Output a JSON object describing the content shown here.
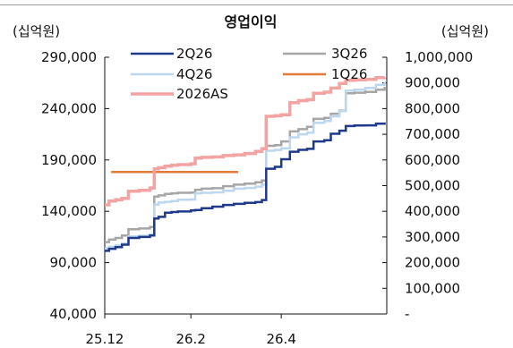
{
  "chart_data": {
    "type": "line",
    "title": "영업이익",
    "left_unit": "(십억원)",
    "right_unit": "(십억원)",
    "x_ticks": [
      "25.12",
      "26.2",
      "26.4"
    ],
    "left_axis": {
      "min": 40000,
      "max": 290000,
      "ticks": [
        40000,
        90000,
        140000,
        190000,
        240000,
        290000
      ],
      "tick_labels": [
        "40,000",
        "90,000",
        "140,000",
        "190,000",
        "240,000",
        "290,000"
      ]
    },
    "right_axis": {
      "min": 0,
      "max": 1000000,
      "ticks": [
        0,
        100000,
        200000,
        300000,
        400000,
        500000,
        600000,
        700000,
        800000,
        900000,
        1000000
      ],
      "tick_labels": [
        "-",
        "100,000",
        "200,000",
        "300,000",
        "400,000",
        "500,000",
        "600,000",
        "700,000",
        "800,000",
        "900,000",
        "1,000,000"
      ]
    },
    "x_range": [
      0,
      131
    ],
    "x_tick_positions": [
      0,
      40,
      82
    ],
    "grid": false,
    "legend_position": "top",
    "series": [
      {
        "name": "2Q26",
        "axis": "left",
        "color": "#1f3a8a",
        "width": 2.5,
        "points": [
          [
            0,
            101500
          ],
          [
            2,
            103500
          ],
          [
            5,
            105200
          ],
          [
            8,
            107500
          ],
          [
            11,
            114000
          ],
          [
            16,
            115000
          ],
          [
            21,
            116500
          ],
          [
            23,
            133000
          ],
          [
            25,
            134600
          ],
          [
            28,
            138600
          ],
          [
            31,
            139300
          ],
          [
            34,
            139800
          ],
          [
            40,
            140800
          ],
          [
            42,
            141200
          ],
          [
            45,
            143000
          ],
          [
            50,
            144500
          ],
          [
            55,
            146200
          ],
          [
            60,
            147200
          ],
          [
            65,
            148200
          ],
          [
            70,
            149000
          ],
          [
            73,
            151000
          ],
          [
            75,
            181500
          ],
          [
            79,
            183300
          ],
          [
            82,
            190700
          ],
          [
            86,
            198000
          ],
          [
            90,
            199800
          ],
          [
            94,
            200800
          ],
          [
            97,
            208000
          ],
          [
            102,
            209200
          ],
          [
            105,
            215500
          ],
          [
            109,
            218500
          ],
          [
            112,
            223000
          ],
          [
            116,
            223600
          ],
          [
            121,
            223700
          ],
          [
            126,
            225300
          ],
          [
            130,
            226500
          ]
        ]
      },
      {
        "name": "3Q26",
        "axis": "right",
        "color": "#a6a6a6",
        "width": 2.5,
        "points": [
          [
            0,
            280000
          ],
          [
            2,
            290000
          ],
          [
            5,
            296000
          ],
          [
            8,
            306000
          ],
          [
            11,
            330000
          ],
          [
            16,
            333000
          ],
          [
            21,
            339000
          ],
          [
            23,
            457000
          ],
          [
            25,
            462000
          ],
          [
            28,
            468000
          ],
          [
            31,
            470000
          ],
          [
            34,
            472000
          ],
          [
            40,
            473000
          ],
          [
            42,
            484000
          ],
          [
            45,
            488000
          ],
          [
            50,
            490000
          ],
          [
            55,
            498000
          ],
          [
            60,
            504000
          ],
          [
            65,
            508000
          ],
          [
            70,
            513000
          ],
          [
            73,
            520000
          ],
          [
            75,
            655000
          ],
          [
            79,
            658000
          ],
          [
            82,
            672000
          ],
          [
            86,
            711000
          ],
          [
            90,
            720000
          ],
          [
            94,
            729000
          ],
          [
            97,
            760000
          ],
          [
            102,
            764000
          ],
          [
            105,
            780000
          ],
          [
            109,
            792000
          ],
          [
            112,
            860000
          ],
          [
            116,
            862000
          ],
          [
            121,
            865000
          ],
          [
            126,
            874000
          ],
          [
            130,
            885000
          ]
        ]
      },
      {
        "name": "4Q26",
        "axis": "right",
        "color": "#bdd7ee",
        "width": 2.5,
        "points": [
          [
            0,
            255000
          ],
          [
            2,
            262000
          ],
          [
            5,
            268000
          ],
          [
            8,
            275000
          ],
          [
            11,
            302000
          ],
          [
            16,
            305000
          ],
          [
            21,
            310000
          ],
          [
            23,
            426000
          ],
          [
            25,
            434000
          ],
          [
            28,
            437000
          ],
          [
            31,
            440000
          ],
          [
            34,
            445000
          ],
          [
            40,
            446000
          ],
          [
            42,
            470000
          ],
          [
            45,
            472000
          ],
          [
            50,
            474000
          ],
          [
            55,
            480000
          ],
          [
            60,
            488000
          ],
          [
            65,
            491000
          ],
          [
            70,
            496000
          ],
          [
            73,
            504000
          ],
          [
            75,
            636000
          ],
          [
            79,
            639000
          ],
          [
            82,
            645000
          ],
          [
            86,
            688000
          ],
          [
            90,
            700000
          ],
          [
            94,
            706000
          ],
          [
            97,
            745000
          ],
          [
            102,
            752000
          ],
          [
            105,
            770000
          ],
          [
            109,
            790000
          ],
          [
            112,
            870000
          ],
          [
            116,
            874000
          ],
          [
            121,
            880000
          ],
          [
            126,
            893000
          ],
          [
            130,
            905000
          ]
        ]
      },
      {
        "name": "1Q26",
        "axis": "right",
        "color": "#e07b39",
        "width": 2.5,
        "points": [
          [
            3,
            553000
          ],
          [
            62,
            553000
          ]
        ]
      },
      {
        "name": "2026AS",
        "axis": "right",
        "color": "#f4a3a3",
        "width": 3.5,
        "points": [
          [
            0,
            425000
          ],
          [
            2,
            440000
          ],
          [
            5,
            445000
          ],
          [
            8,
            450000
          ],
          [
            11,
            478000
          ],
          [
            16,
            482000
          ],
          [
            21,
            491000
          ],
          [
            23,
            565000
          ],
          [
            25,
            570000
          ],
          [
            28,
            576000
          ],
          [
            31,
            579000
          ],
          [
            34,
            582000
          ],
          [
            40,
            585000
          ],
          [
            42,
            607000
          ],
          [
            45,
            610000
          ],
          [
            50,
            612000
          ],
          [
            55,
            617000
          ],
          [
            60,
            620000
          ],
          [
            65,
            625000
          ],
          [
            70,
            633000
          ],
          [
            73,
            644000
          ],
          [
            75,
            770000
          ],
          [
            79,
            772000
          ],
          [
            82,
            776000
          ],
          [
            86,
            823000
          ],
          [
            90,
            831000
          ],
          [
            94,
            835000
          ],
          [
            97,
            860000
          ],
          [
            102,
            864000
          ],
          [
            105,
            880000
          ],
          [
            109,
            898000
          ],
          [
            112,
            910000
          ],
          [
            116,
            912000
          ],
          [
            121,
            914000
          ],
          [
            126,
            921000
          ],
          [
            130,
            922000
          ]
        ]
      }
    ]
  }
}
